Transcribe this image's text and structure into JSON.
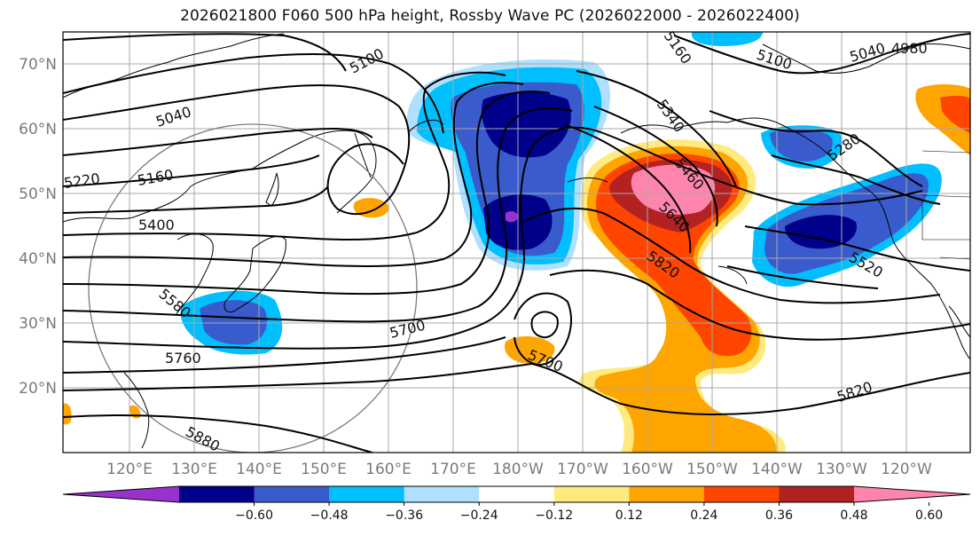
{
  "title": "2026021800 F060 500 hPa height, Rossby Wave PC (2026022000 - 2026022400)",
  "colors": {
    "purple": "#9932cc",
    "navy": "#00008b",
    "royal": "#3a5bcc",
    "deepsky": "#00bfff",
    "lightblue": "#b0e0ff",
    "white": "#ffffff",
    "lightyellow": "#ffea80",
    "orange": "#ffa500",
    "orangered": "#ff4500",
    "firebrick": "#b22222",
    "pink": "#ff85ad"
  },
  "lat_labels": [
    "70°N",
    "60°N",
    "50°N",
    "40°N",
    "30°N",
    "20°N"
  ],
  "lon_labels": [
    "120°E",
    "130°E",
    "140°E",
    "150°E",
    "160°E",
    "170°E",
    "180°W",
    "170°W",
    "160°W",
    "150°W",
    "140°W",
    "130°W",
    "120°W"
  ],
  "contour_labels": [
    {
      "text": "5100"
    },
    {
      "text": "5040"
    },
    {
      "text": "5160"
    },
    {
      "text": "5220"
    },
    {
      "text": "5400"
    },
    {
      "text": "5580"
    },
    {
      "text": "5760"
    },
    {
      "text": "5880"
    },
    {
      "text": "5700"
    },
    {
      "text": "5700"
    },
    {
      "text": "5820"
    },
    {
      "text": "5640"
    },
    {
      "text": "5460"
    },
    {
      "text": "5340"
    },
    {
      "text": "5160"
    },
    {
      "text": "5100"
    },
    {
      "text": "5040"
    },
    {
      "text": "4980"
    },
    {
      "text": "5280"
    },
    {
      "text": "5520"
    },
    {
      "text": "5820"
    }
  ],
  "colorbar": {
    "ticks": [
      "−0.60",
      "−0.48",
      "−0.36",
      "−0.24",
      "−0.12",
      "0.12",
      "0.24",
      "0.36",
      "0.48",
      "0.60"
    ],
    "bins": [
      "purple",
      "navy",
      "royal",
      "deepsky",
      "lightblue",
      "white",
      "lightyellow",
      "orange",
      "orangered",
      "firebrick",
      "pink"
    ]
  }
}
